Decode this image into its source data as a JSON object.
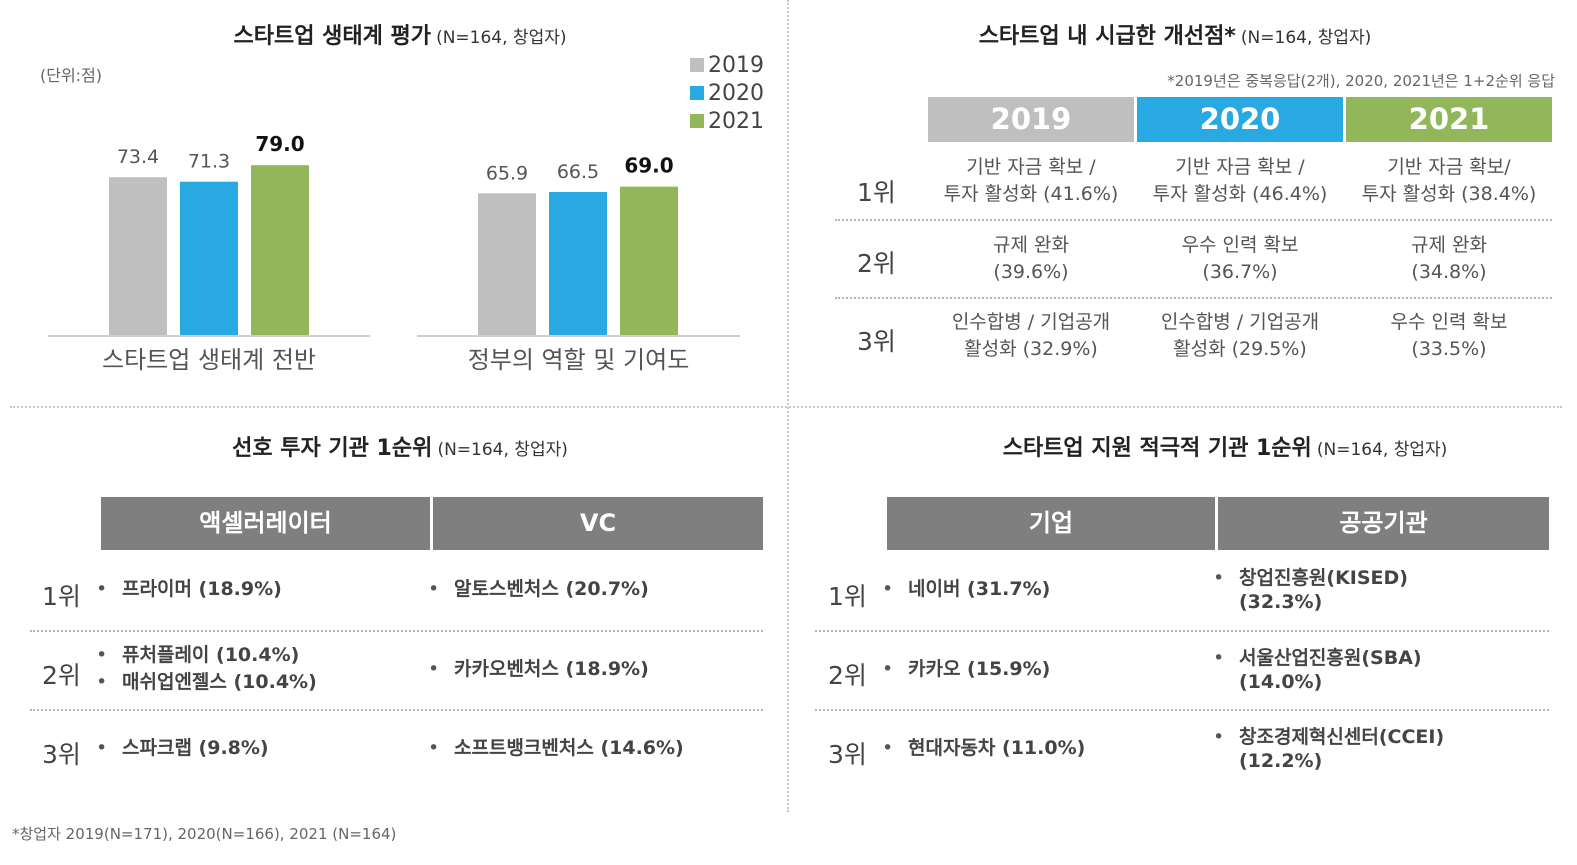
{
  "chart_data": {
    "type": "bar",
    "title": "스타트업 생태계 평가",
    "subtitle": "(N=164, 창업자)",
    "unit": "(단위:점)",
    "categories": [
      "스타트업 생태계 전반",
      "정부의 역할 및 기여도"
    ],
    "series": [
      {
        "name": "2019",
        "values": [
          73.4,
          65.9
        ],
        "labels": [
          "73.4",
          "65.9"
        ],
        "color": "#bfbfbf"
      },
      {
        "name": "2020",
        "values": [
          71.3,
          66.5
        ],
        "labels": [
          "71.3",
          "66.5"
        ],
        "color": "#29a9e1"
      },
      {
        "name": "2021",
        "values": [
          79.0,
          69.0
        ],
        "labels": [
          "79.0",
          "69.0"
        ],
        "color": "#92b75a"
      }
    ],
    "ylim": [
      0,
      100
    ],
    "xlabel": "",
    "ylabel": "",
    "grid": false,
    "legend": "top-right"
  },
  "improvements": {
    "title": "스타트업 내 시급한 개선점*",
    "subtitle": "(N=164, 창업자)",
    "note": "*2019년은 중복응답(2개), 2020, 2021년은 1+2순위 응답",
    "years": [
      {
        "label": "2019",
        "color": "#bfbfbf"
      },
      {
        "label": "2020",
        "color": "#29a9e1"
      },
      {
        "label": "2021",
        "color": "#92b75a"
      }
    ],
    "rows": [
      {
        "rank": "1위",
        "cells": [
          [
            "기반 자금 확보 /",
            "투자 활성화 (41.6%)"
          ],
          [
            "기반 자금 확보 /",
            "투자 활성화 (46.4%)"
          ],
          [
            "기반 자금 확보/",
            "투자 활성화 (38.4%)"
          ]
        ]
      },
      {
        "rank": "2위",
        "cells": [
          [
            "규제 완화",
            "(39.6%)"
          ],
          [
            "우수 인력 확보",
            "(36.7%)"
          ],
          [
            "규제 완화",
            "(34.8%)"
          ]
        ]
      },
      {
        "rank": "3위",
        "cells": [
          [
            "인수합병 / 기업공개",
            "활성화 (32.9%)"
          ],
          [
            "인수합병 / 기업공개",
            "활성화 (29.5%)"
          ],
          [
            "우수 인력 확보",
            "(33.5%)"
          ]
        ]
      }
    ]
  },
  "investors": {
    "title": "선호 투자 기관 1순위",
    "subtitle": "(N=164, 창업자)",
    "bullet": "•",
    "headers": [
      "액셀러레이터",
      "VC"
    ],
    "rows": [
      {
        "rank": "1위",
        "col1": [
          "프라이머 (18.9%)"
        ],
        "col2": [
          "알토스벤처스 (20.7%)"
        ]
      },
      {
        "rank": "2위",
        "col1": [
          "퓨처플레이 (10.4%)",
          "매쉬업엔젤스 (10.4%)"
        ],
        "col2": [
          "카카오벤처스 (18.9%)"
        ]
      },
      {
        "rank": "3위",
        "col1": [
          "스파크랩 (9.8%)"
        ],
        "col2": [
          "소프트뱅크벤처스 (14.6%)"
        ]
      }
    ]
  },
  "supporters": {
    "title": "스타트업 지원 적극적 기관 1순위",
    "subtitle": "(N=164, 창업자)",
    "bullet": "•",
    "headers": [
      "기업",
      "공공기관"
    ],
    "rows": [
      {
        "rank": "1위",
        "col1": [
          "네이버 (31.7%)"
        ],
        "col2": [
          "창업진흥원(KISED)",
          "(32.3%)"
        ]
      },
      {
        "rank": "2위",
        "col1": [
          "카카오 (15.9%)"
        ],
        "col2": [
          "서울산업진흥원(SBA)",
          "(14.0%)"
        ]
      },
      {
        "rank": "3위",
        "col1": [
          "현대자동차 (11.0%)"
        ],
        "col2": [
          "창조경제혁신센터(CCEI)",
          "(12.2%)"
        ]
      }
    ]
  },
  "footnote": "*창업자 2019(N=171), 2020(N=166), 2021 (N=164)"
}
